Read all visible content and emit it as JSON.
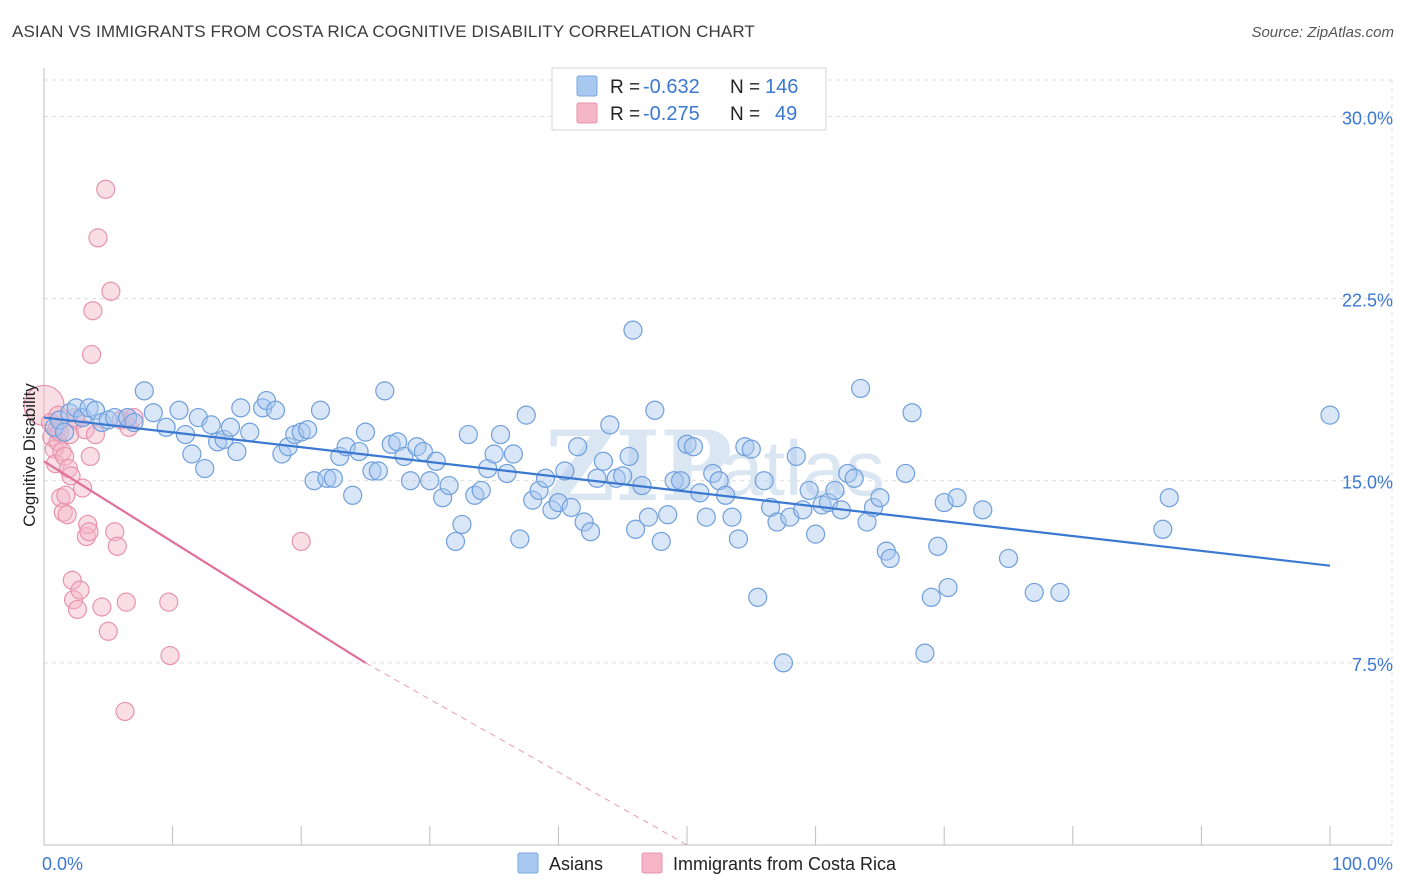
{
  "header": {
    "title": "ASIAN VS IMMIGRANTS FROM COSTA RICA COGNITIVE DISABILITY CORRELATION CHART",
    "source": "Source: ZipAtlas.com"
  },
  "watermark": {
    "part1": "ZIP",
    "part2": "atlas"
  },
  "legend": {
    "r_label": "R =",
    "n_label": "N =",
    "rows": [
      {
        "r": "-0.632",
        "n": "146",
        "color": "#a9c8f0"
      },
      {
        "r": "-0.275",
        "n": "49",
        "color": "#f5b6c8"
      }
    ]
  },
  "chart_data": {
    "type": "scatter",
    "title": "ASIAN VS IMMIGRANTS FROM COSTA RICA COGNITIVE DISABILITY CORRELATION CHART",
    "xlabel": "",
    "ylabel": "Cognitive Disability",
    "xlim": [
      0,
      100
    ],
    "ylim": [
      0,
      31.5
    ],
    "x_tick_labels": [
      "0.0%",
      "100.0%"
    ],
    "y_ticks": [
      7.5,
      15.0,
      22.5,
      30.0
    ],
    "y_tick_labels": [
      "7.5%",
      "15.0%",
      "22.5%",
      "30.0%"
    ],
    "grid": true,
    "legend_position": "top-center",
    "colors": {
      "asians": "#3b78d0",
      "costa_rica": "#e0709a"
    },
    "series": [
      {
        "name": "Asians",
        "color": "#3b78d0",
        "trend": {
          "x": [
            0,
            100
          ],
          "y": [
            17.6,
            11.5
          ]
        },
        "points": [
          [
            0.8,
            17.2
          ],
          [
            1.2,
            17.5
          ],
          [
            1.6,
            17.0
          ],
          [
            2.0,
            17.8
          ],
          [
            2.5,
            18.0
          ],
          [
            3.0,
            17.6
          ],
          [
            3.5,
            18.0
          ],
          [
            4.0,
            17.9
          ],
          [
            4.5,
            17.4
          ],
          [
            5.0,
            17.5
          ],
          [
            5.5,
            17.6
          ],
          [
            6.5,
            17.6
          ],
          [
            7.0,
            17.4
          ],
          [
            7.8,
            18.7
          ],
          [
            8.5,
            17.8
          ],
          [
            9.5,
            17.2
          ],
          [
            10.5,
            17.9
          ],
          [
            11.0,
            16.9
          ],
          [
            11.5,
            16.1
          ],
          [
            12.0,
            17.6
          ],
          [
            12.5,
            15.5
          ],
          [
            13.0,
            17.3
          ],
          [
            13.5,
            16.6
          ],
          [
            14.0,
            16.7
          ],
          [
            14.5,
            17.2
          ],
          [
            15.0,
            16.2
          ],
          [
            15.3,
            18.0
          ],
          [
            16.0,
            17.0
          ],
          [
            17.0,
            18.0
          ],
          [
            17.3,
            18.3
          ],
          [
            18.0,
            17.9
          ],
          [
            18.5,
            16.1
          ],
          [
            19.0,
            16.4
          ],
          [
            19.5,
            16.9
          ],
          [
            20.0,
            17.0
          ],
          [
            20.5,
            17.1
          ],
          [
            21.0,
            15.0
          ],
          [
            21.5,
            17.9
          ],
          [
            22.0,
            15.1
          ],
          [
            22.5,
            15.1
          ],
          [
            23.0,
            16.0
          ],
          [
            23.5,
            16.4
          ],
          [
            24.0,
            14.4
          ],
          [
            24.5,
            16.2
          ],
          [
            25.0,
            17.0
          ],
          [
            25.5,
            15.4
          ],
          [
            26.0,
            15.4
          ],
          [
            26.5,
            18.7
          ],
          [
            27.0,
            16.5
          ],
          [
            27.5,
            16.6
          ],
          [
            28.0,
            16.0
          ],
          [
            28.5,
            15.0
          ],
          [
            29.0,
            16.4
          ],
          [
            29.5,
            16.2
          ],
          [
            30.0,
            15.0
          ],
          [
            30.5,
            15.8
          ],
          [
            31.0,
            14.3
          ],
          [
            31.5,
            14.8
          ],
          [
            32.0,
            12.5
          ],
          [
            32.5,
            13.2
          ],
          [
            33.0,
            16.9
          ],
          [
            33.5,
            14.4
          ],
          [
            34.0,
            14.6
          ],
          [
            34.5,
            15.5
          ],
          [
            35.0,
            16.1
          ],
          [
            35.5,
            16.9
          ],
          [
            36.0,
            15.3
          ],
          [
            36.5,
            16.1
          ],
          [
            37.0,
            12.6
          ],
          [
            37.5,
            17.7
          ],
          [
            38.0,
            14.2
          ],
          [
            38.5,
            14.6
          ],
          [
            39.0,
            15.1
          ],
          [
            39.5,
            13.8
          ],
          [
            40.0,
            14.1
          ],
          [
            40.5,
            15.4
          ],
          [
            41.0,
            13.9
          ],
          [
            41.5,
            16.4
          ],
          [
            42.0,
            13.3
          ],
          [
            42.5,
            12.9
          ],
          [
            43.0,
            15.1
          ],
          [
            43.5,
            15.8
          ],
          [
            44.0,
            17.3
          ],
          [
            44.5,
            15.1
          ],
          [
            45.0,
            15.2
          ],
          [
            45.5,
            16.0
          ],
          [
            45.8,
            21.2
          ],
          [
            46.0,
            13.0
          ],
          [
            46.5,
            14.8
          ],
          [
            47.0,
            13.5
          ],
          [
            47.5,
            17.9
          ],
          [
            48.0,
            12.5
          ],
          [
            48.5,
            13.6
          ],
          [
            49.0,
            15.0
          ],
          [
            49.5,
            15.0
          ],
          [
            50.0,
            16.5
          ],
          [
            50.5,
            16.4
          ],
          [
            51.0,
            14.5
          ],
          [
            51.5,
            13.5
          ],
          [
            52.0,
            15.3
          ],
          [
            52.5,
            15.0
          ],
          [
            53.0,
            14.4
          ],
          [
            53.5,
            13.5
          ],
          [
            54.0,
            12.6
          ],
          [
            54.5,
            16.4
          ],
          [
            55.0,
            16.3
          ],
          [
            55.5,
            10.2
          ],
          [
            56.0,
            15.0
          ],
          [
            56.5,
            13.9
          ],
          [
            57.0,
            13.3
          ],
          [
            57.5,
            7.5
          ],
          [
            58.0,
            13.5
          ],
          [
            58.5,
            16.0
          ],
          [
            59.0,
            13.8
          ],
          [
            59.5,
            14.6
          ],
          [
            60.0,
            12.8
          ],
          [
            60.5,
            14.0
          ],
          [
            61.0,
            14.1
          ],
          [
            61.5,
            14.6
          ],
          [
            62.0,
            13.8
          ],
          [
            62.5,
            15.3
          ],
          [
            63.0,
            15.1
          ],
          [
            63.5,
            18.8
          ],
          [
            64.0,
            13.3
          ],
          [
            64.5,
            13.9
          ],
          [
            65.0,
            14.3
          ],
          [
            65.5,
            12.1
          ],
          [
            65.8,
            11.8
          ],
          [
            67.0,
            15.3
          ],
          [
            67.5,
            17.8
          ],
          [
            69.0,
            10.2
          ],
          [
            69.5,
            12.3
          ],
          [
            70.0,
            14.1
          ],
          [
            70.3,
            10.6
          ],
          [
            71.0,
            14.3
          ],
          [
            73.0,
            13.8
          ],
          [
            75.0,
            11.8
          ],
          [
            77.0,
            10.4
          ],
          [
            79.0,
            10.4
          ],
          [
            87.0,
            13.0
          ],
          [
            87.5,
            14.3
          ],
          [
            100.0,
            17.7
          ],
          [
            68.5,
            7.9
          ]
        ]
      },
      {
        "name": "Immigrants from Costa Rica",
        "color": "#e0709a",
        "trend": {
          "x": [
            0,
            25
          ],
          "y": [
            15.8,
            7.5
          ]
        },
        "trend_dashed": {
          "x": [
            25,
            50
          ],
          "y": [
            7.5,
            0.0
          ]
        },
        "points": [
          [
            0.0,
            18.1
          ],
          [
            0.5,
            17.4
          ],
          [
            0.6,
            16.8
          ],
          [
            0.8,
            16.3
          ],
          [
            0.9,
            15.7
          ],
          [
            1.0,
            17.1
          ],
          [
            1.1,
            16.6
          ],
          [
            1.2,
            17.0
          ],
          [
            1.3,
            14.3
          ],
          [
            1.4,
            16.2
          ],
          [
            1.5,
            13.7
          ],
          [
            1.6,
            16.0
          ],
          [
            1.7,
            14.4
          ],
          [
            1.8,
            13.6
          ],
          [
            1.9,
            15.5
          ],
          [
            2.0,
            16.9
          ],
          [
            2.1,
            15.2
          ],
          [
            2.2,
            10.9
          ],
          [
            2.3,
            10.1
          ],
          [
            2.5,
            17.5
          ],
          [
            2.6,
            9.7
          ],
          [
            2.8,
            10.5
          ],
          [
            3.0,
            14.7
          ],
          [
            3.2,
            17.1
          ],
          [
            3.3,
            12.7
          ],
          [
            3.4,
            13.2
          ],
          [
            3.5,
            12.9
          ],
          [
            3.6,
            16.0
          ],
          [
            3.7,
            20.2
          ],
          [
            3.8,
            22.0
          ],
          [
            4.0,
            16.9
          ],
          [
            4.2,
            25.0
          ],
          [
            4.5,
            9.8
          ],
          [
            4.8,
            27.0
          ],
          [
            5.0,
            8.8
          ],
          [
            5.2,
            22.8
          ],
          [
            5.5,
            12.9
          ],
          [
            5.7,
            12.3
          ],
          [
            6.0,
            17.5
          ],
          [
            6.5,
            17.6
          ],
          [
            6.3,
            5.5
          ],
          [
            6.4,
            10.0
          ],
          [
            6.6,
            17.2
          ],
          [
            7.0,
            17.6
          ],
          [
            9.7,
            10.0
          ],
          [
            9.8,
            7.8
          ],
          [
            20.0,
            12.5
          ],
          [
            2.4,
            17.6
          ],
          [
            1.1,
            17.7
          ]
        ]
      }
    ]
  },
  "bottom_legend": {
    "items": [
      {
        "label": "Asians",
        "color": "#a9c8f0"
      },
      {
        "label": "Immigrants from Costa Rica",
        "color": "#f5b6c8"
      }
    ]
  }
}
